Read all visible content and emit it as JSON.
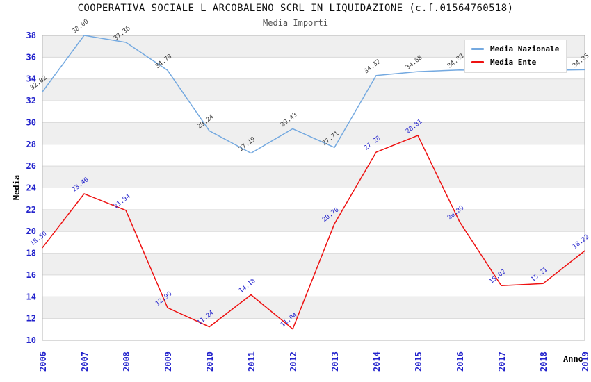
{
  "title": "COOPERATIVA SOCIALE L ARCOBALENO SCRL IN LIQUIDAZIONE (c.f.01564760518)",
  "subtitle": "Media Importi",
  "axes": {
    "y_label": "Media",
    "x_label": "Anno",
    "y_ticks": [
      "38",
      "36",
      "34",
      "32",
      "30",
      "28",
      "26",
      "24",
      "22",
      "20",
      "18",
      "16",
      "14",
      "12",
      "10"
    ],
    "x_ticks": [
      "2006",
      "2007",
      "2008",
      "2009",
      "2010",
      "2011",
      "2012",
      "2013",
      "2014",
      "2015",
      "2016",
      "2017",
      "2018",
      "2019"
    ]
  },
  "legend": {
    "items": [
      {
        "label": "Media Nazionale",
        "color": "#74a9e0"
      },
      {
        "label": "Media Ente",
        "color": "#ee1111"
      }
    ]
  },
  "colors": {
    "tick_label": "#2222cc",
    "nazionale_line": "#74a9e0",
    "ente_line": "#ee1111",
    "nazionale_point_label": "#3a3a3a",
    "ente_point_label": "#2222cc",
    "band": "#efefef",
    "grid": "#d9d9d9",
    "plot_border": "#b5b5b5",
    "background": "#ffffff"
  },
  "chart_data": {
    "type": "line",
    "title": "COOPERATIVA SOCIALE L ARCOBALENO SCRL IN LIQUIDAZIONE (c.f.01564760518)",
    "subtitle": "Media Importi",
    "xlabel": "Anno",
    "ylabel": "Media",
    "x": [
      "2006",
      "2007",
      "2008",
      "2009",
      "2010",
      "2011",
      "2012",
      "2013",
      "2014",
      "2015",
      "2016",
      "2017",
      "2018",
      "2019"
    ],
    "ylim": [
      10,
      38
    ],
    "y_tick_step": 2,
    "grid": "horizontal-bands-alternating",
    "legend_position": "top-right-inside",
    "series": [
      {
        "name": "Media Nazionale",
        "values": [
          32.82,
          38.0,
          37.36,
          34.79,
          29.24,
          27.19,
          29.43,
          27.71,
          34.32,
          34.68,
          34.83,
          34.75,
          34.8,
          34.85
        ],
        "labels": [
          "32.82",
          "38.00",
          "37.36",
          "34.79",
          "29.24",
          "27.19",
          "29.43",
          "27.71",
          "34.32",
          "34.68",
          "34.83",
          null,
          null,
          "34.85"
        ],
        "note": "2017-2018 point labels hidden behind legend box; those two values estimated from flat line"
      },
      {
        "name": "Media Ente",
        "values": [
          18.5,
          23.46,
          21.94,
          12.99,
          11.24,
          14.18,
          11.04,
          20.7,
          27.28,
          28.81,
          20.89,
          15.02,
          15.21,
          18.22
        ],
        "labels": [
          "18.50",
          "23.46",
          "21.94",
          "12.99",
          "11.24",
          "14.18",
          "11.04",
          "20.70",
          "27.28",
          "28.81",
          "20.89",
          "15.02",
          "15.21",
          "18.22"
        ]
      }
    ]
  }
}
